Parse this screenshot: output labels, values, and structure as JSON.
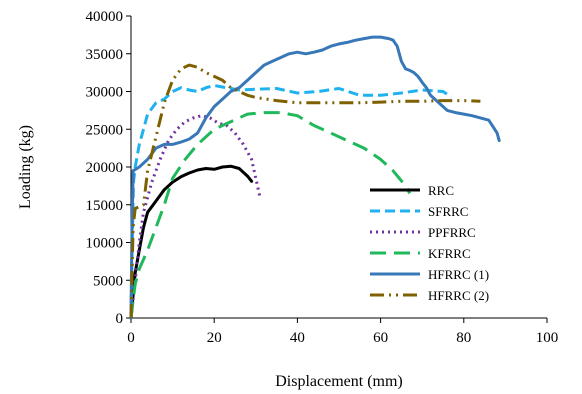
{
  "chart_data": {
    "type": "line",
    "title": "",
    "xlabel": "Displacement (mm)",
    "ylabel": "Loading (kg)",
    "xlim": [
      0,
      100
    ],
    "ylim": [
      0,
      40000
    ],
    "xticks": [
      "0",
      "20",
      "40",
      "60",
      "80",
      "100"
    ],
    "yticks": [
      "0",
      "5000",
      "10000",
      "15000",
      "20000",
      "25000",
      "30000",
      "35000",
      "40000"
    ],
    "grid": false,
    "legend_position": "right",
    "series": [
      {
        "name": "RRC",
        "color": "#000000",
        "dash": "solid",
        "width": 3,
        "points": [
          [
            0,
            0
          ],
          [
            0.5,
            3000
          ],
          [
            1,
            6000
          ],
          [
            2,
            9000
          ],
          [
            3,
            12000
          ],
          [
            4,
            14000
          ],
          [
            6,
            15500
          ],
          [
            8,
            17000
          ],
          [
            10,
            18000
          ],
          [
            12,
            18700
          ],
          [
            14,
            19200
          ],
          [
            16,
            19600
          ],
          [
            18,
            19800
          ],
          [
            20,
            19700
          ],
          [
            22,
            20000
          ],
          [
            24,
            20100
          ],
          [
            26,
            19800
          ],
          [
            28,
            18800
          ],
          [
            29,
            18100
          ]
        ]
      },
      {
        "name": "SFRRC",
        "color": "#1fb1f0",
        "dash": "10,5",
        "width": 3,
        "points": [
          [
            0,
            0
          ],
          [
            0.3,
            10000
          ],
          [
            0.6,
            18000
          ],
          [
            1,
            20000
          ],
          [
            2,
            23000
          ],
          [
            3,
            25000
          ],
          [
            4,
            27000
          ],
          [
            6,
            28500
          ],
          [
            8,
            29000
          ],
          [
            10,
            30000
          ],
          [
            12,
            30500
          ],
          [
            14,
            30200
          ],
          [
            16,
            30000
          ],
          [
            18,
            30500
          ],
          [
            20,
            30800
          ],
          [
            22,
            30600
          ],
          [
            24,
            30400
          ],
          [
            26,
            30200
          ],
          [
            30,
            30300
          ],
          [
            35,
            30400
          ],
          [
            40,
            29800
          ],
          [
            45,
            30000
          ],
          [
            50,
            30400
          ],
          [
            55,
            29500
          ],
          [
            60,
            29500
          ],
          [
            65,
            29800
          ],
          [
            70,
            30200
          ],
          [
            75,
            30000
          ],
          [
            77,
            29300
          ]
        ]
      },
      {
        "name": "PPFRRC",
        "color": "#7030a0",
        "dash": "2,4",
        "width": 3,
        "points": [
          [
            0,
            0
          ],
          [
            1,
            5000
          ],
          [
            2,
            10000
          ],
          [
            3,
            14000
          ],
          [
            5,
            18000
          ],
          [
            7,
            21000
          ],
          [
            9,
            23500
          ],
          [
            11,
            25000
          ],
          [
            13,
            26000
          ],
          [
            15,
            26500
          ],
          [
            17,
            26800
          ],
          [
            19,
            26500
          ],
          [
            21,
            25800
          ],
          [
            23,
            25500
          ],
          [
            25,
            24500
          ],
          [
            27,
            23000
          ],
          [
            29,
            21000
          ],
          [
            30,
            18500
          ],
          [
            31,
            16000
          ]
        ]
      },
      {
        "name": "KFRRC",
        "color": "#1fb85a",
        "dash": "16,8",
        "width": 3,
        "points": [
          [
            0,
            0
          ],
          [
            1,
            4500
          ],
          [
            2,
            6500
          ],
          [
            4,
            9000
          ],
          [
            6,
            12000
          ],
          [
            8,
            15000
          ],
          [
            10,
            18500
          ],
          [
            13,
            21000
          ],
          [
            16,
            23000
          ],
          [
            20,
            25000
          ],
          [
            24,
            26000
          ],
          [
            28,
            27000
          ],
          [
            32,
            27200
          ],
          [
            36,
            27200
          ],
          [
            40,
            26800
          ],
          [
            44,
            25500
          ],
          [
            48,
            24500
          ],
          [
            52,
            23500
          ],
          [
            56,
            22500
          ],
          [
            60,
            21000
          ],
          [
            63,
            19500
          ],
          [
            66,
            17500
          ],
          [
            67,
            16500
          ]
        ]
      },
      {
        "name": "HFRRC (1)",
        "color": "#3878b8",
        "dash": "solid",
        "width": 3,
        "points": [
          [
            0,
            0
          ],
          [
            0.2,
            10000
          ],
          [
            0.5,
            19500
          ],
          [
            2,
            20000
          ],
          [
            4,
            21000
          ],
          [
            6,
            22500
          ],
          [
            8,
            23000
          ],
          [
            10,
            23000
          ],
          [
            12,
            23300
          ],
          [
            14,
            23700
          ],
          [
            16,
            24500
          ],
          [
            18,
            26500
          ],
          [
            20,
            28000
          ],
          [
            22,
            29000
          ],
          [
            24,
            30000
          ],
          [
            26,
            30500
          ],
          [
            28,
            31500
          ],
          [
            30,
            32500
          ],
          [
            32,
            33500
          ],
          [
            34,
            34000
          ],
          [
            36,
            34500
          ],
          [
            38,
            35000
          ],
          [
            40,
            35200
          ],
          [
            42,
            35000
          ],
          [
            44,
            35200
          ],
          [
            46,
            35500
          ],
          [
            48,
            36000
          ],
          [
            50,
            36300
          ],
          [
            52,
            36500
          ],
          [
            54,
            36800
          ],
          [
            56,
            37000
          ],
          [
            58,
            37200
          ],
          [
            60,
            37200
          ],
          [
            62,
            37000
          ],
          [
            63,
            36800
          ],
          [
            64,
            36000
          ],
          [
            65,
            34000
          ],
          [
            66,
            33000
          ],
          [
            67,
            32800
          ],
          [
            68,
            32500
          ],
          [
            69,
            32000
          ],
          [
            70,
            31200
          ],
          [
            71,
            30500
          ],
          [
            72,
            29500
          ],
          [
            74,
            28500
          ],
          [
            76,
            27500
          ],
          [
            78,
            27200
          ],
          [
            80,
            27000
          ],
          [
            82,
            26800
          ],
          [
            84,
            26500
          ],
          [
            86,
            26200
          ],
          [
            88,
            24500
          ],
          [
            88.5,
            23500
          ]
        ]
      },
      {
        "name": "HFRRC (2)",
        "color": "#7f6000",
        "dash": "14,5,2,5,2,5",
        "width": 3,
        "points": [
          [
            0,
            0
          ],
          [
            0.5,
            12000
          ],
          [
            1,
            14500
          ],
          [
            3,
            15000
          ],
          [
            4,
            19500
          ],
          [
            6,
            24000
          ],
          [
            8,
            28500
          ],
          [
            10,
            31500
          ],
          [
            12,
            33000
          ],
          [
            14,
            33500
          ],
          [
            16,
            33200
          ],
          [
            18,
            32500
          ],
          [
            20,
            32000
          ],
          [
            22,
            31500
          ],
          [
            24,
            30500
          ],
          [
            26,
            30000
          ],
          [
            28,
            29500
          ],
          [
            30,
            29200
          ],
          [
            35,
            28800
          ],
          [
            40,
            28500
          ],
          [
            45,
            28500
          ],
          [
            50,
            28500
          ],
          [
            55,
            28500
          ],
          [
            60,
            28600
          ],
          [
            65,
            28700
          ],
          [
            70,
            28700
          ],
          [
            75,
            28800
          ],
          [
            80,
            28800
          ],
          [
            84,
            28700
          ]
        ]
      }
    ]
  }
}
